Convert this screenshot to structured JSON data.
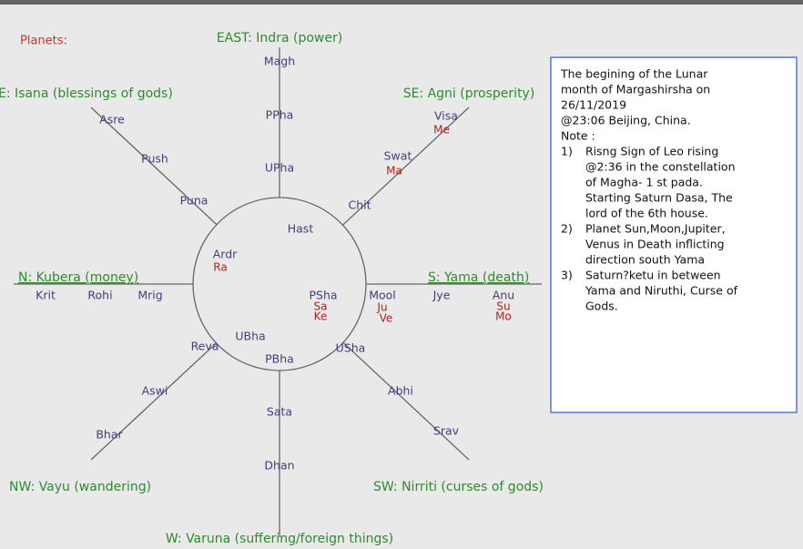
{
  "title": "Planets:",
  "directions": [
    "EAST: Indra (power)",
    "E: Isana (blessings of gods)",
    "SE: Agni (prosperity)",
    "N: Kubera (money)",
    "S: Yama (death)",
    "NW: Vayu (wandering)",
    "SW: Nirriti (curses of gods)",
    "W: Varuna (suffering/foreign things)"
  ],
  "nakshatras": [
    "Magh",
    "PPha",
    "UPha",
    "Hast",
    "Asre",
    "Push",
    "Puna",
    "Ardr",
    "Chit",
    "Swat",
    "Visa",
    "Krit",
    "Rohi",
    "Mrig",
    "PSha",
    "Mool",
    "Jye",
    "Anu",
    "UBha",
    "Reva",
    "Aswi",
    "Bhar",
    "USha",
    "Abhi",
    "Srav",
    "PBha",
    "Sata",
    "Dhan"
  ],
  "planets": [
    "Me",
    "Ma",
    "Ra",
    "Sa",
    "Ke",
    "Ju",
    "Ve",
    "Su",
    "Mo"
  ],
  "note": {
    "intro": [
      "The begining of the Lunar",
      "month of Margashirsha  on",
      "26/11/2019",
      "@23:06 Beijing, China.",
      "Note :"
    ],
    "items": [
      {
        "num": "1)",
        "lines": [
          "Risng Sign of Leo rising",
          "@2:36 in the constellation",
          "of Magha- 1 st pada.",
          "Starting Saturn Dasa,  The",
          "lord of the 6th house."
        ]
      },
      {
        "num": "2)",
        "lines": [
          "Planet Sun,Moon,Jupiter,",
          "Venus in Death inflicting",
          "direction south Yama"
        ]
      },
      {
        "num": "3)",
        "lines": [
          "Saturn?ketu in between",
          "Yama and Niruthi, Curse of",
          "Gods."
        ]
      }
    ]
  }
}
